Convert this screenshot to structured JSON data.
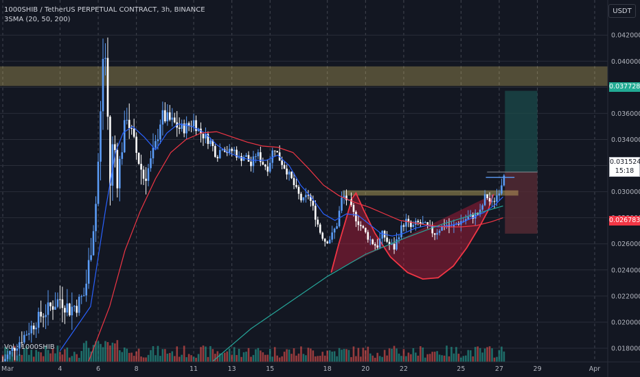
{
  "legend": {
    "title": "1000SHIB / TetherUS PERPETUAL CONTRACT, 3h, BINANCE",
    "indicator": "3SMA (20, 50, 200)",
    "volume": "Vol · 1000SHIB"
  },
  "currency": "USDT",
  "price_tags": {
    "target": "0.037728",
    "last": "0.031524",
    "countdown": "15:18",
    "stop": "0.026783"
  },
  "colors": {
    "background": "#131722",
    "up": "#5b9cf6",
    "down": "#ffffff",
    "sma20": "#2962ff",
    "sma50": "#f23645",
    "sma200": "#26a69a",
    "zone": "#f7dc6f",
    "cup": "#b71c3c",
    "target_box": "#1b4b4b",
    "stop_box": "#5b2c35",
    "vol_up": "#26a69a",
    "vol_down": "#ef5350"
  },
  "chart_data": {
    "type": "candlestick",
    "x_tick_labels": [
      "Mar",
      "4",
      "6",
      "8",
      "11",
      "13",
      "15",
      "18",
      "20",
      "22",
      "25",
      "27",
      "29",
      "Apr"
    ],
    "y_tick_labels": [
      "0.018000",
      "0.020000",
      "0.022000",
      "0.024000",
      "0.026000",
      "0.028000",
      "0.030000",
      "0.032000",
      "0.034000",
      "0.036000",
      "0.038000",
      "0.040000",
      "0.042000"
    ],
    "ylim": [
      0.01695,
      0.04469
    ],
    "zone": [
      0.0381,
      0.0396
    ],
    "price_series": [
      [
        0,
        0.017
      ],
      [
        2,
        0.0205
      ],
      [
        3,
        0.0218
      ],
      [
        3.5,
        0.021
      ],
      [
        4,
        0.0215
      ],
      [
        4.3,
        0.0222
      ],
      [
        4.6,
        0.0255
      ],
      [
        4.9,
        0.0295
      ],
      [
        5.1,
        0.035
      ],
      [
        5.3,
        0.042
      ],
      [
        5.45,
        0.0385
      ],
      [
        5.6,
        0.03
      ],
      [
        5.8,
        0.0345
      ],
      [
        6.0,
        0.031
      ],
      [
        6.2,
        0.033
      ],
      [
        6.5,
        0.036
      ],
      [
        6.8,
        0.034
      ],
      [
        7.1,
        0.0325
      ],
      [
        7.4,
        0.031
      ],
      [
        7.7,
        0.032
      ],
      [
        8.0,
        0.0335
      ],
      [
        8.3,
        0.0358
      ],
      [
        8.7,
        0.0355
      ],
      [
        9.0,
        0.0352
      ],
      [
        9.3,
        0.0348
      ],
      [
        9.7,
        0.035
      ],
      [
        10.0,
        0.0354
      ],
      [
        10.3,
        0.0346
      ],
      [
        10.6,
        0.0342
      ],
      [
        10.9,
        0.0338
      ],
      [
        11.2,
        0.0327
      ],
      [
        11.5,
        0.0335
      ],
      [
        11.8,
        0.033
      ],
      [
        12.1,
        0.0332
      ],
      [
        12.4,
        0.0325
      ],
      [
        12.7,
        0.0328
      ],
      [
        13.0,
        0.032
      ],
      [
        13.3,
        0.033
      ],
      [
        13.6,
        0.0322
      ],
      [
        13.9,
        0.0318
      ],
      [
        14.2,
        0.0335
      ],
      [
        14.5,
        0.0325
      ],
      [
        14.8,
        0.0318
      ],
      [
        15.1,
        0.031
      ],
      [
        15.4,
        0.03
      ],
      [
        15.7,
        0.0292
      ],
      [
        16.0,
        0.0298
      ],
      [
        16.3,
        0.0285
      ],
      [
        16.6,
        0.027
      ],
      [
        16.9,
        0.0262
      ],
      [
        17.2,
        0.0265
      ],
      [
        17.5,
        0.0275
      ],
      [
        17.8,
        0.0298
      ],
      [
        18.1,
        0.0292
      ],
      [
        18.4,
        0.0282
      ],
      [
        18.7,
        0.0275
      ],
      [
        19.0,
        0.0268
      ],
      [
        19.3,
        0.0262
      ],
      [
        19.6,
        0.0258
      ],
      [
        19.9,
        0.0268
      ],
      [
        20.2,
        0.026
      ],
      [
        20.5,
        0.0257
      ],
      [
        20.8,
        0.027
      ],
      [
        21.1,
        0.0278
      ],
      [
        21.4,
        0.0272
      ],
      [
        21.7,
        0.0276
      ],
      [
        22.0,
        0.0275
      ],
      [
        22.3,
        0.0272
      ],
      [
        22.6,
        0.0268
      ],
      [
        22.9,
        0.0272
      ],
      [
        23.2,
        0.0275
      ],
      [
        23.5,
        0.0272
      ],
      [
        23.8,
        0.0276
      ],
      [
        24.1,
        0.0278
      ],
      [
        24.4,
        0.028
      ],
      [
        24.7,
        0.0282
      ],
      [
        25.0,
        0.0284
      ],
      [
        25.3,
        0.0298
      ],
      [
        25.6,
        0.029
      ],
      [
        25.9,
        0.0298
      ],
      [
        26.1,
        0.0305
      ],
      [
        26.25,
        0.0315
      ]
    ],
    "sma20": [
      [
        3,
        0.0178
      ],
      [
        4.6,
        0.0212
      ],
      [
        5.4,
        0.0288
      ],
      [
        5.9,
        0.033
      ],
      [
        6.3,
        0.0345
      ],
      [
        6.8,
        0.035
      ],
      [
        7.4,
        0.0342
      ],
      [
        8.0,
        0.0332
      ],
      [
        8.6,
        0.0345
      ],
      [
        9.2,
        0.0352
      ],
      [
        9.9,
        0.035
      ],
      [
        10.6,
        0.0345
      ],
      [
        11.2,
        0.0336
      ],
      [
        11.8,
        0.033
      ],
      [
        12.5,
        0.0326
      ],
      [
        13.1,
        0.0324
      ],
      [
        13.8,
        0.0324
      ],
      [
        14.4,
        0.0328
      ],
      [
        15.0,
        0.032
      ],
      [
        15.6,
        0.0305
      ],
      [
        16.2,
        0.0295
      ],
      [
        16.8,
        0.0283
      ],
      [
        17.4,
        0.0278
      ],
      [
        18.0,
        0.0283
      ],
      [
        18.6,
        0.0282
      ],
      [
        19.2,
        0.0275
      ],
      [
        19.8,
        0.0268
      ],
      [
        20.4,
        0.0266
      ],
      [
        21.0,
        0.0268
      ],
      [
        21.6,
        0.0272
      ],
      [
        22.2,
        0.0274
      ],
      [
        22.8,
        0.0273
      ],
      [
        23.4,
        0.0274
      ],
      [
        24.0,
        0.0276
      ],
      [
        24.6,
        0.028
      ],
      [
        25.2,
        0.0284
      ],
      [
        25.8,
        0.029
      ],
      [
        26.2,
        0.0296
      ]
    ],
    "sma50": [
      [
        4.5,
        0.017
      ],
      [
        5.6,
        0.0212
      ],
      [
        6.4,
        0.0255
      ],
      [
        7.2,
        0.0285
      ],
      [
        8.0,
        0.031
      ],
      [
        8.8,
        0.033
      ],
      [
        9.6,
        0.034
      ],
      [
        10.4,
        0.0345
      ],
      [
        11.2,
        0.0346
      ],
      [
        12.0,
        0.0342
      ],
      [
        12.8,
        0.0338
      ],
      [
        13.6,
        0.0335
      ],
      [
        14.4,
        0.0334
      ],
      [
        15.2,
        0.033
      ],
      [
        16.0,
        0.0318
      ],
      [
        16.8,
        0.0305
      ],
      [
        17.6,
        0.0297
      ],
      [
        18.4,
        0.0292
      ],
      [
        19.2,
        0.0288
      ],
      [
        20.0,
        0.0283
      ],
      [
        20.8,
        0.0278
      ],
      [
        21.6,
        0.0276
      ],
      [
        22.4,
        0.0274
      ],
      [
        23.2,
        0.0273
      ],
      [
        24.0,
        0.0273
      ],
      [
        24.8,
        0.0274
      ],
      [
        25.6,
        0.0277
      ],
      [
        26.2,
        0.028
      ]
    ],
    "sma200": [
      [
        11.0,
        0.017
      ],
      [
        13.0,
        0.0195
      ],
      [
        15.0,
        0.0215
      ],
      [
        17.0,
        0.0235
      ],
      [
        19.0,
        0.0252
      ],
      [
        21.0,
        0.0264
      ],
      [
        23.0,
        0.0275
      ],
      [
        25.0,
        0.0284
      ],
      [
        26.2,
        0.0289
      ]
    ],
    "cup_curve": [
      [
        17.2,
        0.0238
      ],
      [
        17.6,
        0.026
      ],
      [
        18.0,
        0.028
      ],
      [
        18.3,
        0.0295
      ],
      [
        18.5,
        0.0299
      ],
      [
        18.9,
        0.0286
      ],
      [
        19.5,
        0.0268
      ],
      [
        20.3,
        0.025
      ],
      [
        21.2,
        0.0238
      ],
      [
        22.0,
        0.0233
      ],
      [
        22.8,
        0.0234
      ],
      [
        23.6,
        0.0243
      ],
      [
        24.3,
        0.0257
      ],
      [
        25.0,
        0.0274
      ],
      [
        25.4,
        0.0285
      ],
      [
        25.7,
        0.0298
      ]
    ],
    "position": {
      "entry": 0.0315,
      "target": 0.037728,
      "stop": 0.026783,
      "x_start": 26.3,
      "x_end": 28.0
    }
  }
}
